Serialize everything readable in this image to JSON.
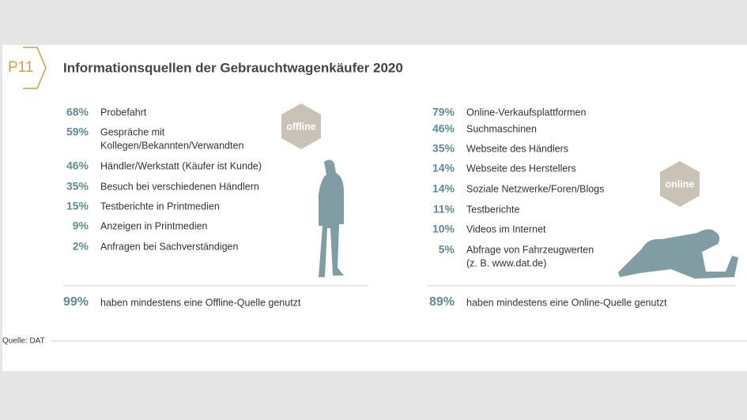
{
  "header": {
    "badge": "P11",
    "title": "Informationsquellen der Gebrauchtwagenkäufer 2020"
  },
  "offline": {
    "badge": "offline",
    "items": [
      {
        "percent": "68%",
        "label": [
          "Probefahrt"
        ]
      },
      {
        "percent": "59%",
        "label": [
          "Gespräche mit",
          "Kollegen/Bekannten/Verwandten"
        ]
      },
      {
        "percent": "46%",
        "label": [
          "Händler/Werkstatt (Käufer ist Kunde)"
        ]
      },
      {
        "percent": "35%",
        "label": [
          "Besuch bei verschiedenen Händlern"
        ]
      },
      {
        "percent": "15%",
        "label": [
          "Testberichte in Printmedien"
        ]
      },
      {
        "percent": "9%",
        "label": [
          "Anzeigen in Printmedien"
        ]
      },
      {
        "percent": "2%",
        "label": [
          "Anfragen bei Sachverständigen"
        ]
      }
    ],
    "total": {
      "percent": "99%",
      "label": "haben mindestens eine Offline-Quelle genutzt"
    }
  },
  "online": {
    "badge": "online",
    "items": [
      {
        "percent": "79%",
        "label": [
          "Online-Verkaufsplattformen"
        ]
      },
      {
        "percent": "46%",
        "label": [
          "Suchmaschinen"
        ]
      },
      {
        "percent": "35%",
        "label": [
          "Webseite des Händlers"
        ]
      },
      {
        "percent": "14%",
        "label": [
          "Webseite des Herstellers"
        ]
      },
      {
        "percent": "14%",
        "label": [
          "Soziale Netzwerke/Foren/Blogs"
        ]
      },
      {
        "percent": "11%",
        "label": [
          "Testberichte"
        ]
      },
      {
        "percent": "10%",
        "label": [
          "Videos im Internet"
        ]
      },
      {
        "percent": "5%",
        "label": [
          "Abfrage von Fahrzeugwerten",
          "(z. B. www.dat.de)"
        ]
      }
    ],
    "total": {
      "percent": "89%",
      "label": "haben mindestens eine Online-Quelle genutzt"
    }
  },
  "source": "Quelle: DAT"
}
